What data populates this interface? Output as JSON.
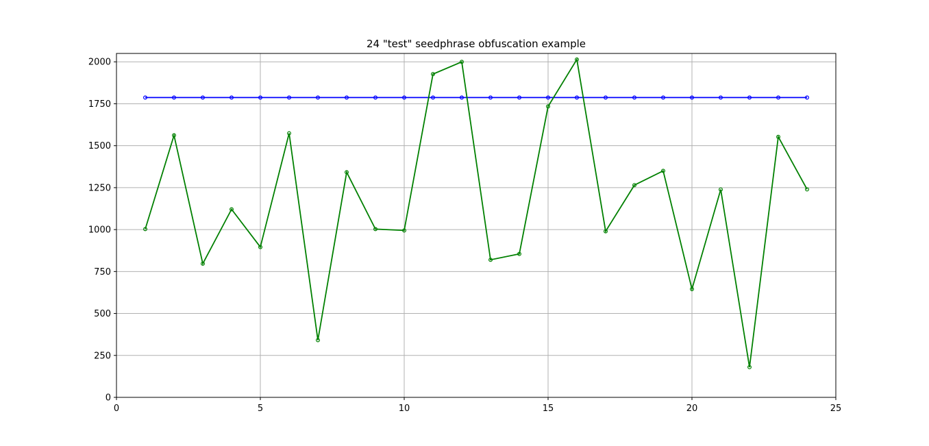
{
  "chart_data": {
    "type": "line",
    "title": "24 \"test\" seedphrase obfuscation example",
    "xlabel": "",
    "ylabel": "",
    "xlim": [
      0,
      25
    ],
    "ylim": [
      0,
      2050
    ],
    "xticks": [
      0,
      5,
      10,
      15,
      20,
      25
    ],
    "yticks": [
      0,
      250,
      500,
      750,
      1000,
      1250,
      1500,
      1750,
      2000
    ],
    "grid": true,
    "x": [
      1,
      2,
      3,
      4,
      5,
      6,
      7,
      8,
      9,
      10,
      11,
      12,
      13,
      14,
      15,
      16,
      17,
      18,
      19,
      20,
      21,
      22,
      23,
      24
    ],
    "series": [
      {
        "color": "#0000ff",
        "marker": "circle",
        "values": [
          1787,
          1787,
          1787,
          1787,
          1787,
          1787,
          1787,
          1787,
          1787,
          1787,
          1787,
          1787,
          1787,
          1787,
          1787,
          1787,
          1787,
          1787,
          1787,
          1787,
          1787,
          1787,
          1787,
          1787
        ]
      },
      {
        "color": "#008000",
        "marker": "circle",
        "values": [
          1003,
          1562,
          797,
          1121,
          896,
          1574,
          341,
          1342,
          1003,
          995,
          1927,
          2000,
          820,
          855,
          1734,
          2014,
          990,
          1265,
          1350,
          645,
          1239,
          180,
          1553,
          1240
        ]
      }
    ]
  }
}
